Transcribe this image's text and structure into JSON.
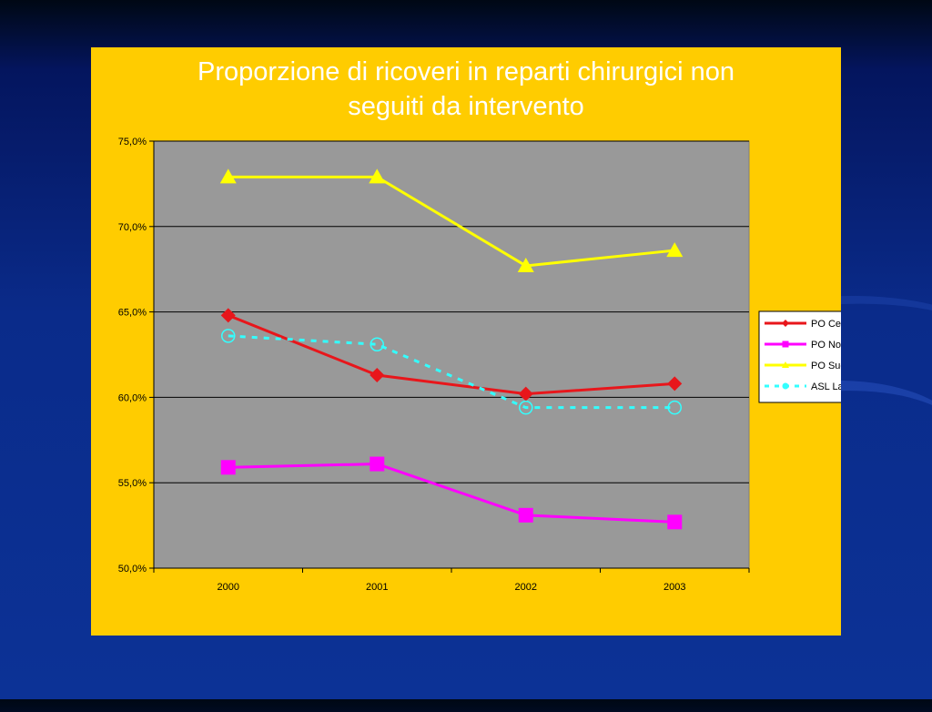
{
  "chart_data": {
    "type": "line",
    "title": "Proporzione di ricoveri in reparti chirurgici non\nseguiti da intervento",
    "xlabel": "",
    "ylabel": "",
    "categories": [
      "2000",
      "2001",
      "2002",
      "2003"
    ],
    "ylim": [
      50,
      75
    ],
    "yticks": [
      "75,0%",
      "70,0%",
      "65,0%",
      "60,0%",
      "55,0%",
      "50,0%"
    ],
    "grid": true,
    "legend_position": "right",
    "series": [
      {
        "name": "PO Centro",
        "values": [
          64.8,
          61.3,
          60.2,
          60.8
        ],
        "color": "#e8161b",
        "marker": "diamond",
        "dash": false
      },
      {
        "name": "PO Nord",
        "values": [
          55.9,
          56.1,
          53.1,
          52.7
        ],
        "color": "#ff00ff",
        "marker": "square",
        "dash": false
      },
      {
        "name": "PO Sud",
        "values": [
          72.9,
          72.9,
          67.7,
          68.6
        ],
        "color": "#ffff00",
        "marker": "triangle",
        "dash": false
      },
      {
        "name": "ASL Latina",
        "values": [
          63.6,
          63.1,
          59.4,
          59.4
        ],
        "color": "#33ffff",
        "marker": "circle",
        "dash": true
      }
    ]
  },
  "colors": {
    "panel": "#ffcc00",
    "plot_area": "#999999",
    "title_text": "#ffffff"
  }
}
